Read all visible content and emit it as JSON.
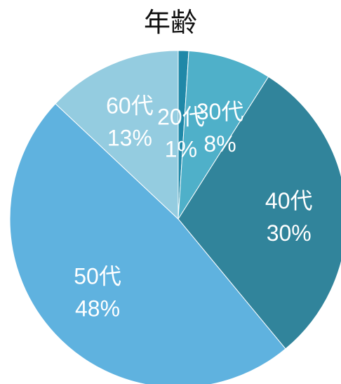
{
  "chart_data": {
    "type": "pie",
    "title": "年齢",
    "categories": [
      "20代",
      "30代",
      "40代",
      "50代",
      "60代"
    ],
    "values": [
      1,
      8,
      30,
      48,
      13
    ],
    "labels": [
      "1%",
      "8%",
      "30%",
      "48%",
      "13%"
    ],
    "colors": [
      "#1f88a8",
      "#4fb0c9",
      "#31849b",
      "#5fb2df",
      "#94cce0"
    ],
    "start_angle_deg": 0,
    "direction": "clockwise",
    "legend": "none"
  }
}
